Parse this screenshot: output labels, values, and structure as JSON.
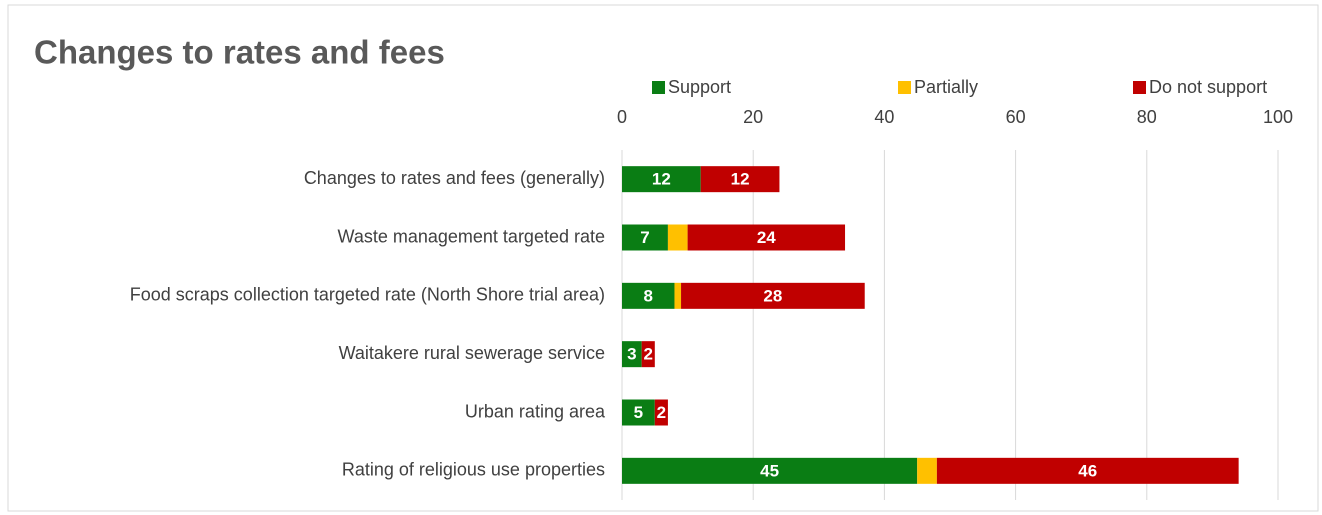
{
  "chart_data": {
    "type": "stacked_bar_horizontal",
    "title": "Changes to rates and fees",
    "categories": [
      "Changes to rates and fees (generally)",
      "Waste management targeted rate",
      "Food scraps collection targeted rate (North Shore trial area)",
      "Waitakere rural sewerage service",
      "Urban rating area",
      "Rating of religious use properties"
    ],
    "series": [
      {
        "name": "Support",
        "color": "#0a7d14",
        "values": [
          12,
          7,
          8,
          3,
          5,
          45
        ],
        "data_labels": true
      },
      {
        "name": "Partially",
        "color": "#ffc000",
        "values": [
          0,
          3,
          1,
          0,
          0,
          3
        ],
        "data_labels": false
      },
      {
        "name": "Do not support",
        "color": "#c00000",
        "values": [
          12,
          24,
          28,
          2,
          2,
          46
        ],
        "data_labels": true
      }
    ],
    "xlim": [
      0,
      100
    ],
    "xticks": [
      0,
      20,
      40,
      60,
      80,
      100
    ],
    "grid": true,
    "legend": "top"
  }
}
